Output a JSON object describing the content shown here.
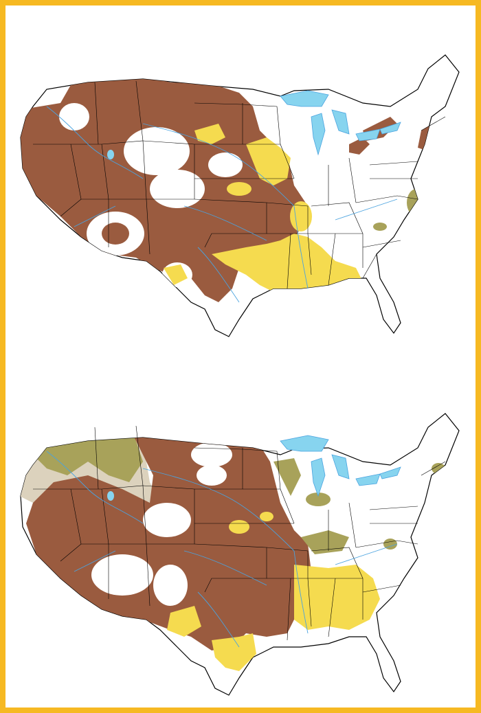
{
  "colors": {
    "frame": "#f6b922",
    "background": "#ffffff",
    "brown": "#9a5b3f",
    "yellow": "#f5db4f",
    "olive": "#a8a25a",
    "tan": "#dcd2bd",
    "water": "#87d4ef",
    "river": "#4aa3df",
    "border": "#000000"
  },
  "maps": [
    {
      "id": "top",
      "shaded_categories": [
        "brown",
        "yellow",
        "olive"
      ]
    },
    {
      "id": "bottom",
      "shaded_categories": [
        "brown",
        "yellow",
        "olive",
        "tan"
      ]
    }
  ]
}
